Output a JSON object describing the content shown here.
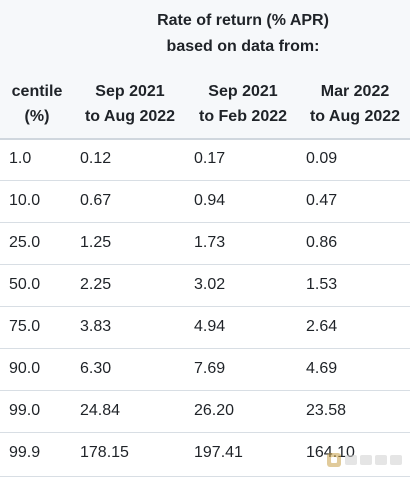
{
  "table": {
    "group_header": [
      "Rate of return (% APR)",
      "based on data from:"
    ],
    "columns": [
      [
        "centile",
        "(%)"
      ],
      [
        "Sep 2021",
        "to Aug 2022"
      ],
      [
        "Sep 2021",
        "to Feb 2022"
      ],
      [
        "Mar 2022",
        "to Aug 2022"
      ]
    ],
    "rows": [
      [
        "1.0",
        "0.12",
        "0.17",
        "0.09"
      ],
      [
        "10.0",
        "0.67",
        "0.94",
        "0.47"
      ],
      [
        "25.0",
        "1.25",
        "1.73",
        "0.86"
      ],
      [
        "50.0",
        "2.25",
        "3.02",
        "1.53"
      ],
      [
        "75.0",
        "3.83",
        "4.94",
        "2.64"
      ],
      [
        "90.0",
        "6.30",
        "7.69",
        "4.69"
      ],
      [
        "99.0",
        "24.84",
        "26.20",
        "23.58"
      ],
      [
        "99.9",
        "178.15",
        "197.41",
        "164.10"
      ]
    ]
  }
}
